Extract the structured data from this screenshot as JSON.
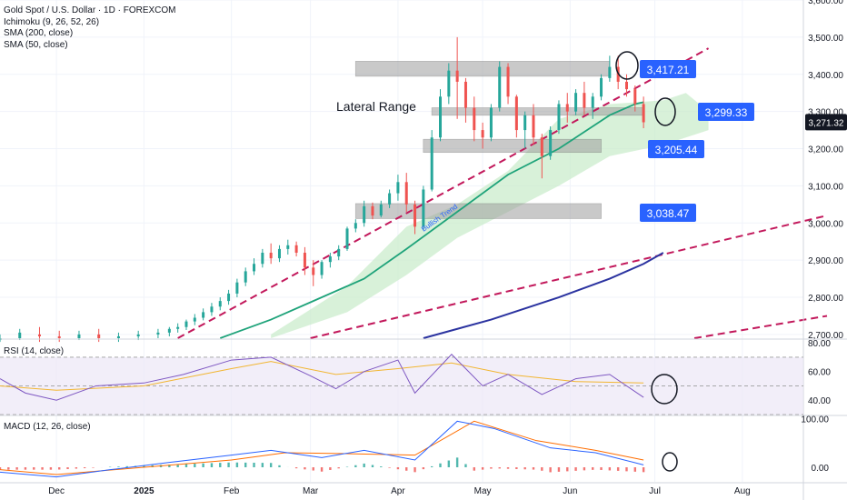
{
  "legend": {
    "symbol": "Gold Spot / U.S. Dollar · 1D · FOREXCOM",
    "ichimoku": "Ichimoku (9, 26, 52, 26)",
    "sma200": "SMA (200, close)",
    "sma50": "SMA (50, close)"
  },
  "rsi_label": "RSI (14, close)",
  "macd_label": "MACD (12, 26, close)",
  "colors": {
    "up": "#26a69a",
    "down": "#ef5350",
    "sma50": "#1fa37a",
    "sma200": "#2b33a0",
    "trendline": "#c2185b",
    "cloud": "#c8ebc9",
    "zone": "#9e9e9e",
    "price_badge": "#2962ff",
    "last_price_badge": "#131722",
    "rsi_line": "#7e57c2",
    "rsi_ma": "#f2b632",
    "macd_line": "#2962ff",
    "signal_line": "#ff6d00"
  },
  "annotation": "Lateral Range",
  "trend_label": "Bullish Trend",
  "chart_data": [
    {
      "type": "candlestick",
      "title": "Gold Spot / U.S. Dollar · 1D · FOREXCOM",
      "y_axis_ticks": [
        "3,600.00",
        "3,500.00",
        "3,400.00",
        "3,300.00",
        "3,200.00",
        "3,100.00",
        "3,000.00",
        "2,900.00",
        "2,800.00",
        "2,700.00"
      ],
      "ylim": [
        2690,
        3600
      ],
      "x_axis_ticks": [
        "Dec",
        "2025",
        "Feb",
        "Mar",
        "Apr",
        "May",
        "Jun",
        "Jul",
        "Aug"
      ],
      "last_price": "3,271.32",
      "price_labels": [
        "3,417.21",
        "3,299.33",
        "3,205.44",
        "3,038.47"
      ],
      "zones": [
        {
          "label": "3,417.21",
          "low": 3395,
          "high": 3435
        },
        {
          "label": "3,299.33",
          "low": 3290,
          "high": 3310
        },
        {
          "label": "3,205.44",
          "low": 3190,
          "high": 3225
        },
        {
          "label": "3,038.47",
          "low": 3012,
          "high": 3052
        }
      ],
      "candles": [
        {
          "date": "2024-11-11",
          "o": 2685,
          "h": 2700,
          "c": 2690,
          "l": 2680
        },
        {
          "date": "2024-11-18",
          "o": 2690,
          "h": 2715,
          "c": 2705,
          "l": 2685
        },
        {
          "date": "2024-11-25",
          "o": 2700,
          "h": 2720,
          "c": 2695,
          "l": 2680
        },
        {
          "date": "2024-12-02",
          "o": 2695,
          "h": 2710,
          "c": 2690,
          "l": 2680
        },
        {
          "date": "2024-12-09",
          "o": 2690,
          "h": 2710,
          "c": 2700,
          "l": 2685
        },
        {
          "date": "2024-12-16",
          "o": 2700,
          "h": 2715,
          "c": 2690,
          "l": 2680
        },
        {
          "date": "2024-12-23",
          "o": 2690,
          "h": 2705,
          "c": 2695,
          "l": 2680
        },
        {
          "date": "2024-12-30",
          "o": 2695,
          "h": 2710,
          "c": 2700,
          "l": 2685
        },
        {
          "date": "2025-01-06",
          "o": 2700,
          "h": 2715,
          "c": 2705,
          "l": 2690
        },
        {
          "date": "2025-01-10",
          "o": 2705,
          "h": 2720,
          "c": 2715,
          "l": 2695
        },
        {
          "date": "2025-01-13",
          "o": 2715,
          "h": 2730,
          "c": 2720,
          "l": 2705
        },
        {
          "date": "2025-01-16",
          "o": 2720,
          "h": 2740,
          "c": 2735,
          "l": 2712
        },
        {
          "date": "2025-01-19",
          "o": 2735,
          "h": 2755,
          "c": 2745,
          "l": 2725
        },
        {
          "date": "2025-01-22",
          "o": 2745,
          "h": 2770,
          "c": 2760,
          "l": 2738
        },
        {
          "date": "2025-01-25",
          "o": 2760,
          "h": 2785,
          "c": 2775,
          "l": 2750
        },
        {
          "date": "2025-01-28",
          "o": 2775,
          "h": 2800,
          "c": 2790,
          "l": 2765
        },
        {
          "date": "2025-01-31",
          "o": 2790,
          "h": 2820,
          "c": 2810,
          "l": 2780
        },
        {
          "date": "2025-02-03",
          "o": 2810,
          "h": 2850,
          "c": 2840,
          "l": 2800
        },
        {
          "date": "2025-02-06",
          "o": 2840,
          "h": 2880,
          "c": 2870,
          "l": 2830
        },
        {
          "date": "2025-02-09",
          "o": 2870,
          "h": 2905,
          "c": 2890,
          "l": 2860
        },
        {
          "date": "2025-02-12",
          "o": 2890,
          "h": 2930,
          "c": 2920,
          "l": 2880
        },
        {
          "date": "2025-02-15",
          "o": 2920,
          "h": 2945,
          "c": 2905,
          "l": 2890
        },
        {
          "date": "2025-02-18",
          "o": 2905,
          "h": 2940,
          "c": 2930,
          "l": 2895
        },
        {
          "date": "2025-02-21",
          "o": 2930,
          "h": 2955,
          "c": 2940,
          "l": 2915
        },
        {
          "date": "2025-02-24",
          "o": 2940,
          "h": 2950,
          "c": 2920,
          "l": 2910
        },
        {
          "date": "2025-02-27",
          "o": 2920,
          "h": 2935,
          "c": 2880,
          "l": 2860
        },
        {
          "date": "2025-03-02",
          "o": 2880,
          "h": 2900,
          "c": 2860,
          "l": 2830
        },
        {
          "date": "2025-03-05",
          "o": 2860,
          "h": 2900,
          "c": 2895,
          "l": 2850
        },
        {
          "date": "2025-03-08",
          "o": 2895,
          "h": 2920,
          "c": 2910,
          "l": 2880
        },
        {
          "date": "2025-03-11",
          "o": 2910,
          "h": 2940,
          "c": 2930,
          "l": 2900
        },
        {
          "date": "2025-03-14",
          "o": 2930,
          "h": 2990,
          "c": 2985,
          "l": 2925
        },
        {
          "date": "2025-03-17",
          "o": 2985,
          "h": 3010,
          "c": 3000,
          "l": 2975
        },
        {
          "date": "2025-03-20",
          "o": 3000,
          "h": 3060,
          "c": 3045,
          "l": 2990
        },
        {
          "date": "2025-03-23",
          "o": 3045,
          "h": 3055,
          "c": 3020,
          "l": 3010
        },
        {
          "date": "2025-03-26",
          "o": 3020,
          "h": 3060,
          "c": 3050,
          "l": 3015
        },
        {
          "date": "2025-03-29",
          "o": 3050,
          "h": 3090,
          "c": 3080,
          "l": 3040
        },
        {
          "date": "2025-04-01",
          "o": 3080,
          "h": 3130,
          "c": 3110,
          "l": 3060
        },
        {
          "date": "2025-04-04",
          "o": 3110,
          "h": 3135,
          "c": 3050,
          "l": 3030
        },
        {
          "date": "2025-04-07",
          "o": 3050,
          "h": 3060,
          "c": 2990,
          "l": 2970
        },
        {
          "date": "2025-04-10",
          "o": 2990,
          "h": 3100,
          "c": 3090,
          "l": 2980
        },
        {
          "date": "2025-04-13",
          "o": 3090,
          "h": 3250,
          "c": 3230,
          "l": 3085
        },
        {
          "date": "2025-04-16",
          "o": 3230,
          "h": 3360,
          "c": 3340,
          "l": 3220
        },
        {
          "date": "2025-04-19",
          "o": 3340,
          "h": 3430,
          "c": 3410,
          "l": 3320
        },
        {
          "date": "2025-04-22",
          "o": 3410,
          "h": 3500,
          "c": 3380,
          "l": 3280
        },
        {
          "date": "2025-04-25",
          "o": 3380,
          "h": 3390,
          "c": 3310,
          "l": 3270
        },
        {
          "date": "2025-04-28",
          "o": 3310,
          "h": 3340,
          "c": 3250,
          "l": 3220
        },
        {
          "date": "2025-05-01",
          "o": 3250,
          "h": 3270,
          "c": 3230,
          "l": 3200
        },
        {
          "date": "2025-05-04",
          "o": 3230,
          "h": 3320,
          "c": 3310,
          "l": 3220
        },
        {
          "date": "2025-05-07",
          "o": 3310,
          "h": 3435,
          "c": 3420,
          "l": 3300
        },
        {
          "date": "2025-05-10",
          "o": 3420,
          "h": 3430,
          "c": 3340,
          "l": 3320
        },
        {
          "date": "2025-05-13",
          "o": 3340,
          "h": 3345,
          "c": 3250,
          "l": 3230
        },
        {
          "date": "2025-05-16",
          "o": 3250,
          "h": 3300,
          "c": 3290,
          "l": 3200
        },
        {
          "date": "2025-05-19",
          "o": 3290,
          "h": 3320,
          "c": 3230,
          "l": 3210
        },
        {
          "date": "2025-05-22",
          "o": 3230,
          "h": 3240,
          "c": 3180,
          "l": 3120
        },
        {
          "date": "2025-05-25",
          "o": 3180,
          "h": 3260,
          "c": 3250,
          "l": 3170
        },
        {
          "date": "2025-05-28",
          "o": 3250,
          "h": 3330,
          "c": 3320,
          "l": 3240
        },
        {
          "date": "2025-05-31",
          "o": 3320,
          "h": 3350,
          "c": 3300,
          "l": 3270
        },
        {
          "date": "2025-06-03",
          "o": 3300,
          "h": 3360,
          "c": 3350,
          "l": 3290
        },
        {
          "date": "2025-06-06",
          "o": 3350,
          "h": 3380,
          "c": 3310,
          "l": 3290
        },
        {
          "date": "2025-06-09",
          "o": 3310,
          "h": 3350,
          "c": 3340,
          "l": 3280
        },
        {
          "date": "2025-06-12",
          "o": 3340,
          "h": 3400,
          "c": 3390,
          "l": 3330
        },
        {
          "date": "2025-06-15",
          "o": 3390,
          "h": 3450,
          "c": 3420,
          "l": 3380
        },
        {
          "date": "2025-06-18",
          "o": 3420,
          "h": 3450,
          "c": 3380,
          "l": 3360
        },
        {
          "date": "2025-06-21",
          "o": 3380,
          "h": 3400,
          "c": 3360,
          "l": 3340
        },
        {
          "date": "2025-06-24",
          "o": 3360,
          "h": 3370,
          "c": 3320,
          "l": 3300
        },
        {
          "date": "2025-06-27",
          "o": 3320,
          "h": 3340,
          "c": 3271,
          "l": 3255
        }
      ],
      "sma50": [
        {
          "date": "2025-01-28",
          "v": 2690
        },
        {
          "date": "2025-02-15",
          "v": 2740
        },
        {
          "date": "2025-03-02",
          "v": 2790
        },
        {
          "date": "2025-03-20",
          "v": 2850
        },
        {
          "date": "2025-04-04",
          "v": 2930
        },
        {
          "date": "2025-04-22",
          "v": 3030
        },
        {
          "date": "2025-05-10",
          "v": 3130
        },
        {
          "date": "2025-05-28",
          "v": 3200
        },
        {
          "date": "2025-06-15",
          "v": 3290
        },
        {
          "date": "2025-06-24",
          "v": 3320
        },
        {
          "date": "2025-06-27",
          "v": 3325
        }
      ],
      "sma200": [
        {
          "date": "2025-04-10",
          "v": 2690
        },
        {
          "date": "2025-05-04",
          "v": 2740
        },
        {
          "date": "2025-05-28",
          "v": 2800
        },
        {
          "date": "2025-06-15",
          "v": 2850
        },
        {
          "date": "2025-06-27",
          "v": 2890
        },
        {
          "date": "2025-07-04",
          "v": 2920
        }
      ],
      "cloud": {
        "upper": [
          {
            "date": "2025-02-15",
            "v": 2700
          },
          {
            "date": "2025-03-14",
            "v": 2830
          },
          {
            "date": "2025-04-04",
            "v": 2990
          },
          {
            "date": "2025-04-22",
            "v": 3050
          },
          {
            "date": "2025-05-10",
            "v": 3140
          },
          {
            "date": "2025-05-28",
            "v": 3280
          },
          {
            "date": "2025-06-15",
            "v": 3320
          },
          {
            "date": "2025-07-04",
            "v": 3330
          },
          {
            "date": "2025-07-12",
            "v": 3350
          },
          {
            "date": "2025-07-20",
            "v": 3300
          }
        ],
        "lower": [
          {
            "date": "2025-02-15",
            "v": 2690
          },
          {
            "date": "2025-03-14",
            "v": 2760
          },
          {
            "date": "2025-04-04",
            "v": 2860
          },
          {
            "date": "2025-04-22",
            "v": 2960
          },
          {
            "date": "2025-05-10",
            "v": 3030
          },
          {
            "date": "2025-05-28",
            "v": 3100
          },
          {
            "date": "2025-06-15",
            "v": 3180
          },
          {
            "date": "2025-07-04",
            "v": 3210
          },
          {
            "date": "2025-07-12",
            "v": 3230
          },
          {
            "date": "2025-07-20",
            "v": 3250
          }
        ]
      },
      "trendlines": [
        {
          "from": {
            "date": "2025-01-13",
            "v": 2690
          },
          "to": {
            "date": "2025-07-20",
            "v": 3470
          }
        },
        {
          "from": {
            "date": "2025-03-01",
            "v": 2690
          },
          "to": {
            "date": "2025-08-31",
            "v": 3020
          }
        },
        {
          "from": {
            "date": "2025-07-15",
            "v": 2690
          },
          "to": {
            "date": "2025-08-31",
            "v": 2750
          }
        }
      ]
    },
    {
      "type": "line",
      "title": "RSI (14, close)",
      "y_axis_ticks": [
        "80.00",
        "60.00",
        "40.00"
      ],
      "ylim": [
        30,
        82
      ],
      "band": [
        30,
        70
      ],
      "mid": 50,
      "series": [
        {
          "values": [
            [
              "2024-11-11",
              55
            ],
            [
              "2024-11-20",
              45
            ],
            [
              "2024-12-01",
              40
            ],
            [
              "2024-12-15",
              50
            ],
            [
              "2025-01-01",
              52
            ],
            [
              "2025-01-15",
              58
            ],
            [
              "2025-02-01",
              68
            ],
            [
              "2025-02-15",
              70
            ],
            [
              "2025-03-01",
              57
            ],
            [
              "2025-03-10",
              48
            ],
            [
              "2025-03-20",
              60
            ],
            [
              "2025-04-01",
              68
            ],
            [
              "2025-04-07",
              45
            ],
            [
              "2025-04-20",
              72
            ],
            [
              "2025-05-01",
              50
            ],
            [
              "2025-05-10",
              58
            ],
            [
              "2025-05-22",
              44
            ],
            [
              "2025-06-03",
              55
            ],
            [
              "2025-06-15",
              58
            ],
            [
              "2025-06-27",
              42
            ]
          ]
        },
        {
          "values": [
            [
              "2024-11-11",
              50
            ],
            [
              "2024-12-01",
              47
            ],
            [
              "2025-01-01",
              50
            ],
            [
              "2025-02-01",
              62
            ],
            [
              "2025-02-15",
              67
            ],
            [
              "2025-03-10",
              58
            ],
            [
              "2025-04-01",
              62
            ],
            [
              "2025-04-20",
              66
            ],
            [
              "2025-05-10",
              58
            ],
            [
              "2025-06-03",
              53
            ],
            [
              "2025-06-27",
              52
            ]
          ]
        }
      ]
    },
    {
      "type": "bar",
      "title": "MACD (12, 26, close)",
      "y_axis_ticks": [
        "100.00",
        "0.00"
      ],
      "ylim": [
        -30,
        105
      ],
      "series": [
        {
          "values": [
            [
              "2024-11-11",
              -10
            ],
            [
              "2024-12-01",
              -20
            ],
            [
              "2024-12-20",
              -5
            ],
            [
              "2025-01-10",
              10
            ],
            [
              "2025-02-01",
              25
            ],
            [
              "2025-02-15",
              35
            ],
            [
              "2025-03-05",
              20
            ],
            [
              "2025-03-20",
              35
            ],
            [
              "2025-04-07",
              15
            ],
            [
              "2025-04-22",
              95
            ],
            [
              "2025-05-05",
              80
            ],
            [
              "2025-05-25",
              40
            ],
            [
              "2025-06-10",
              30
            ],
            [
              "2025-06-27",
              5
            ]
          ]
        },
        {
          "values": [
            [
              "2024-11-11",
              -5
            ],
            [
              "2024-12-01",
              -15
            ],
            [
              "2025-01-01",
              0
            ],
            [
              "2025-02-01",
              15
            ],
            [
              "2025-02-20",
              30
            ],
            [
              "2025-03-15",
              28
            ],
            [
              "2025-04-07",
              25
            ],
            [
              "2025-04-28",
              95
            ],
            [
              "2025-05-20",
              55
            ],
            [
              "2025-06-10",
              35
            ],
            [
              "2025-06-27",
              15
            ]
          ]
        }
      ]
    }
  ]
}
